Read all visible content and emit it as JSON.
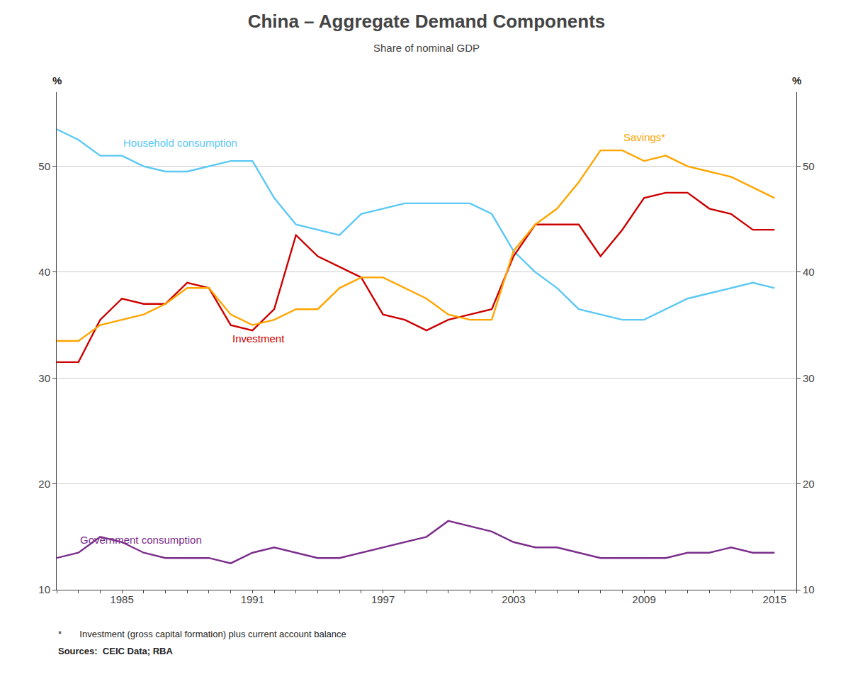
{
  "chart_data": {
    "type": "line",
    "title": "China – Aggregate Demand Components",
    "subtitle": "Share of nominal GDP",
    "ylabel": "%",
    "y2label": "%",
    "x": [
      1982,
      1983,
      1984,
      1985,
      1986,
      1987,
      1988,
      1989,
      1990,
      1991,
      1992,
      1993,
      1994,
      1995,
      1996,
      1997,
      1998,
      1999,
      2000,
      2001,
      2002,
      2003,
      2004,
      2005,
      2006,
      2007,
      2008,
      2009,
      2010,
      2011,
      2012,
      2013,
      2014,
      2015
    ],
    "series": [
      {
        "name": "Household consumption",
        "color": "#5BC8F5",
        "values": [
          53.5,
          52.5,
          51.0,
          51.0,
          50.0,
          49.5,
          49.5,
          50.0,
          50.5,
          50.5,
          47.0,
          44.5,
          44.0,
          43.5,
          45.5,
          46.0,
          46.5,
          46.5,
          46.5,
          46.5,
          45.5,
          42.0,
          40.0,
          38.5,
          36.5,
          36.0,
          35.5,
          35.5,
          36.5,
          37.5,
          38.0,
          38.5,
          39.0,
          38.5
        ]
      },
      {
        "name": "Investment",
        "color": "#CC0000",
        "values": [
          31.5,
          31.5,
          35.5,
          37.5,
          37.0,
          37.0,
          39.0,
          38.5,
          35.0,
          34.5,
          36.5,
          43.5,
          41.5,
          40.5,
          39.5,
          36.0,
          35.5,
          34.5,
          35.5,
          36.0,
          36.5,
          41.5,
          44.5,
          44.5,
          44.5,
          41.5,
          44.0,
          47.0,
          47.5,
          47.5,
          46.0,
          45.5,
          44.0,
          44.0
        ]
      },
      {
        "name": "Savings*",
        "color": "#FFA500",
        "values": [
          33.5,
          33.5,
          35.0,
          35.5,
          36.0,
          37.0,
          38.5,
          38.5,
          36.0,
          35.0,
          35.5,
          36.5,
          36.5,
          38.5,
          39.5,
          39.5,
          38.5,
          37.5,
          36.0,
          35.5,
          35.5,
          42.0,
          44.5,
          46.0,
          48.5,
          51.5,
          51.5,
          50.5,
          51.0,
          50.0,
          49.5,
          49.0,
          48.0,
          47.0
        ]
      },
      {
        "name": "Government consumption",
        "color": "#7B2D8B",
        "values": [
          13.0,
          13.5,
          15.0,
          14.5,
          13.5,
          13.0,
          13.0,
          13.0,
          12.5,
          13.5,
          14.0,
          13.5,
          13.0,
          13.0,
          13.5,
          14.0,
          14.5,
          15.0,
          16.5,
          16.0,
          15.5,
          14.5,
          14.0,
          14.0,
          13.5,
          13.0,
          13.0,
          13.0,
          13.0,
          13.5,
          13.5,
          14.0,
          13.5,
          13.5
        ]
      }
    ],
    "xlim": [
      1982,
      2016
    ],
    "xticks": [
      1985,
      1991,
      1997,
      2003,
      2009,
      2015
    ],
    "ylim": [
      10,
      57
    ],
    "yticks": [
      10,
      20,
      30,
      40,
      50
    ],
    "y2lim": [
      10,
      57
    ],
    "y2ticks": [
      10,
      20,
      30,
      40,
      50
    ],
    "grid": true,
    "footnotes": [
      "*       Investment (gross capital formation) plus current account balance",
      "Sources:  CEIC Data; RBA"
    ]
  }
}
